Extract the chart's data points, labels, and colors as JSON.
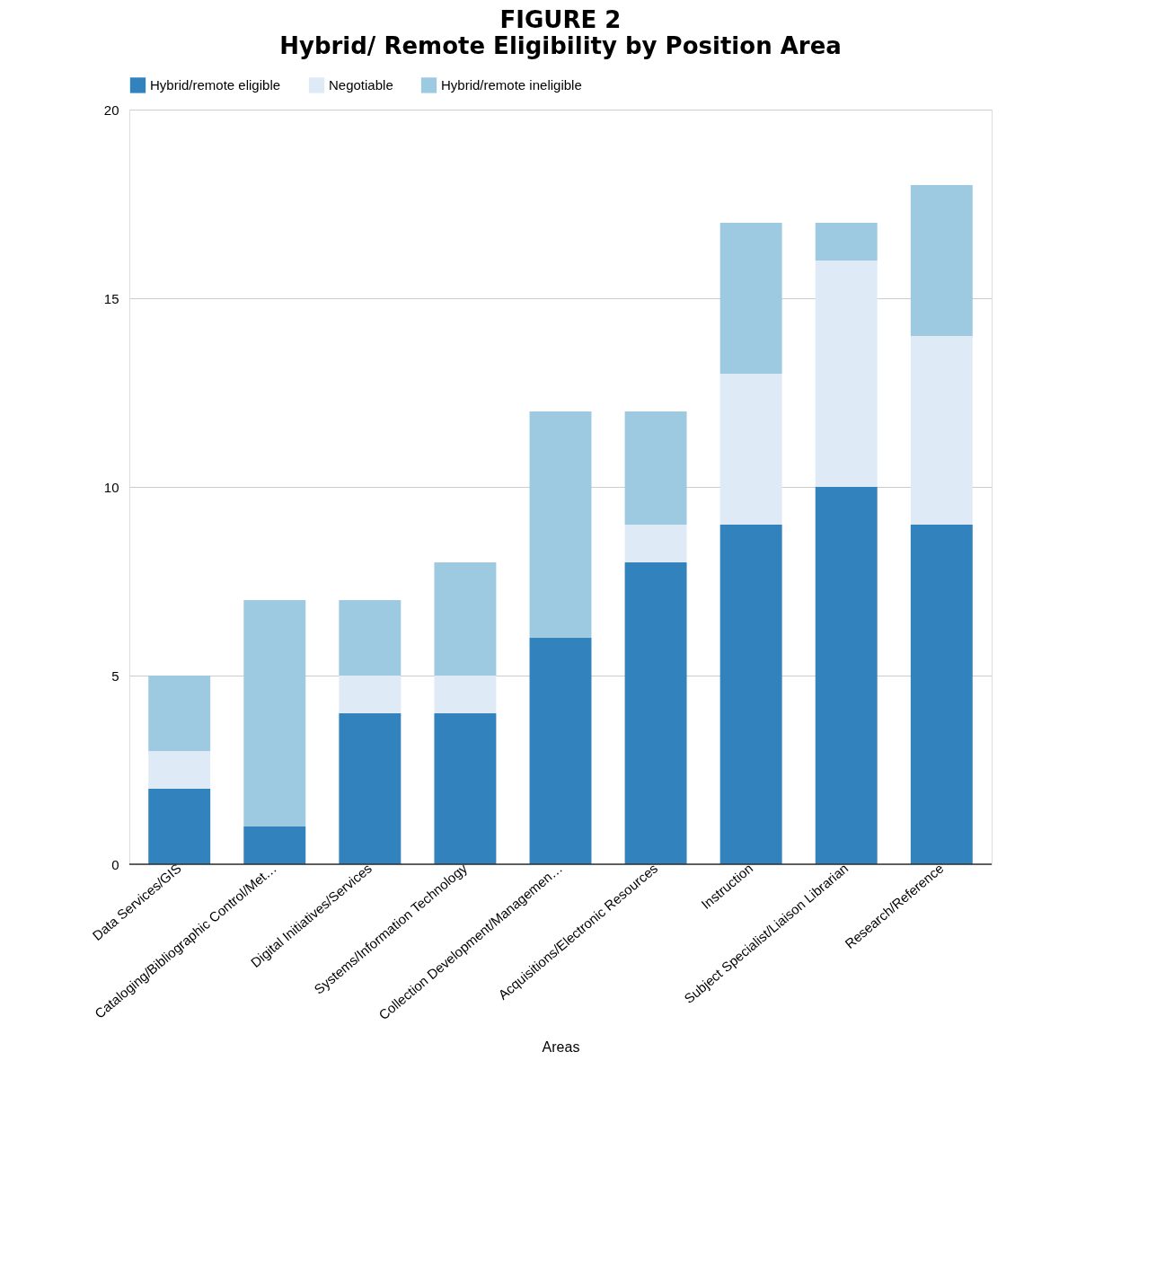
{
  "chart_data": {
    "type": "bar",
    "title": "FIGURE 2",
    "subtitle": "Hybrid/ Remote Eligibility by Position Area",
    "xlabel": "Areas",
    "stacked": true,
    "categories": [
      "Data Services/GIS",
      "Cataloging/Bibliographic Control/Met…",
      "Digital Initiatives/Services",
      "Systems/Information Technology",
      "Collection Development/Managemen…",
      "Acquisitions/Electronic Resources",
      "Instruction",
      "Subject Specialist/Liaison Librarian",
      "Research/Reference"
    ],
    "series": [
      {
        "name": "Hybrid/remote eligible",
        "color": "#3182bd",
        "values": [
          2,
          1,
          4,
          4,
          6,
          8,
          9,
          10,
          9
        ]
      },
      {
        "name": "Negotiable",
        "color": "#deebf7",
        "values": [
          1,
          0,
          1,
          1,
          0,
          1,
          4,
          6,
          5
        ]
      },
      {
        "name": "Hybrid/remote ineligible",
        "color": "#9ecae1",
        "values": [
          2,
          6,
          2,
          3,
          6,
          3,
          4,
          1,
          4
        ]
      }
    ],
    "ylim": [
      0,
      20
    ],
    "yticks": [
      0,
      5,
      10,
      15,
      20
    ],
    "grid": "y",
    "legend": "top"
  }
}
